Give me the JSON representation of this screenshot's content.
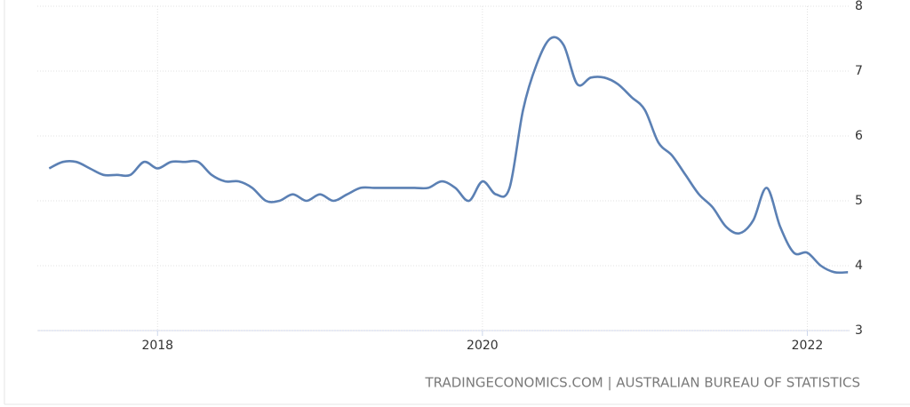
{
  "chart_data": {
    "type": "line",
    "source": "TRADINGECONOMICS.COM | AUSTRALIAN BUREAU OF STATISTICS",
    "x": [
      2017.333,
      2017.417,
      2017.5,
      2017.583,
      2017.667,
      2017.75,
      2017.833,
      2017.917,
      2018,
      2018.083,
      2018.167,
      2018.25,
      2018.333,
      2018.417,
      2018.5,
      2018.583,
      2018.667,
      2018.75,
      2018.833,
      2018.917,
      2019,
      2019.083,
      2019.167,
      2019.25,
      2019.333,
      2019.417,
      2019.5,
      2019.583,
      2019.667,
      2019.75,
      2019.833,
      2019.917,
      2020,
      2020.083,
      2020.167,
      2020.25,
      2020.333,
      2020.417,
      2020.5,
      2020.583,
      2020.667,
      2020.75,
      2020.833,
      2020.917,
      2021,
      2021.083,
      2021.167,
      2021.25,
      2021.333,
      2021.417,
      2021.5,
      2021.583,
      2021.667,
      2021.75,
      2021.833,
      2021.917,
      2022,
      2022.083,
      2022.167,
      2022.25
    ],
    "series": [
      {
        "color": "#5b80b4",
        "values": [
          5.5,
          5.6,
          5.6,
          5.5,
          5.4,
          5.4,
          5.4,
          5.6,
          5.5,
          5.6,
          5.6,
          5.6,
          5.4,
          5.3,
          5.3,
          5.2,
          5.0,
          5.0,
          5.1,
          5.0,
          5.1,
          5.0,
          5.1,
          5.2,
          5.2,
          5.2,
          5.2,
          5.2,
          5.2,
          5.3,
          5.2,
          5.0,
          5.3,
          5.1,
          5.2,
          6.4,
          7.1,
          7.5,
          7.4,
          6.8,
          6.9,
          6.9,
          6.8,
          6.6,
          6.4,
          5.9,
          5.7,
          5.4,
          5.1,
          4.9,
          4.6,
          4.5,
          4.7,
          5.2,
          4.6,
          4.2,
          4.2,
          4.0,
          3.9,
          3.9
        ]
      }
    ],
    "xlim": [
      2017.26,
      2022.26
    ],
    "xticks": [
      2018,
      2020,
      2022
    ],
    "ylim": [
      3,
      8
    ],
    "yticks": [
      3,
      4,
      5,
      6,
      7,
      8
    ],
    "grid": true
  }
}
